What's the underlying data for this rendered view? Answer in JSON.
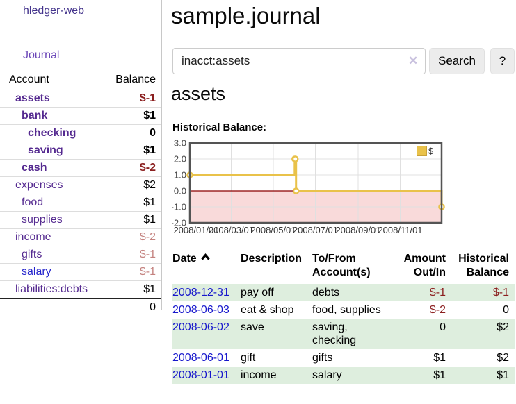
{
  "app": {
    "brand": "hledger-web"
  },
  "colors": {
    "brand_purple": "#44348c",
    "nav_purple": "#6b46b8",
    "account_link_purple": "#552a90",
    "link_blue": "#1717cc",
    "negative_strong": "#8b1f1f",
    "negative_faded": "#c4827f",
    "row_green": "#deeede",
    "chart_gold": "#e9c24a",
    "chart_negative_region": "#f9dada",
    "chart_zero_line": "#8b0000"
  },
  "sidebar": {
    "journal_link": "Journal",
    "accounts": {
      "headers": [
        "Account",
        "Balance"
      ],
      "rows": [
        {
          "name": "assets",
          "depth": 0,
          "bold": true,
          "balance": "$-1",
          "neg": "strong"
        },
        {
          "name": "bank",
          "depth": 1,
          "bold": true,
          "balance": "$1"
        },
        {
          "name": "checking",
          "depth": 2,
          "bold": true,
          "balance": "0"
        },
        {
          "name": "saving",
          "depth": 2,
          "bold": true,
          "balance": "$1"
        },
        {
          "name": "cash",
          "depth": 1,
          "bold": true,
          "balance": "$-2",
          "neg": "strong"
        },
        {
          "name": "expenses",
          "depth": 0,
          "bold": false,
          "balance": "$2"
        },
        {
          "name": "food",
          "depth": 1,
          "bold": false,
          "balance": "$1"
        },
        {
          "name": "supplies",
          "depth": 1,
          "bold": false,
          "balance": "$1"
        },
        {
          "name": "income",
          "depth": 0,
          "bold": false,
          "balance": "$-2",
          "neg": "faded"
        },
        {
          "name": "gifts",
          "depth": 1,
          "bold": false,
          "balance": "$-1",
          "neg": "faded"
        },
        {
          "name": "salary",
          "depth": 1,
          "bold": false,
          "balance": "$-1",
          "neg": "faded",
          "link": "blue"
        },
        {
          "name": "liabilities:debts",
          "depth": 0,
          "bold": false,
          "balance": "$1"
        }
      ],
      "total": "0"
    }
  },
  "main": {
    "title": "sample.journal",
    "search": {
      "value": "inacct:assets",
      "clear_glyph": "✕",
      "button_label": "Search",
      "help_label": "?"
    },
    "account_heading": "assets",
    "chart_label": "Historical Balance:"
  },
  "chart_data": {
    "type": "line",
    "style": "step",
    "title": "Historical Balance",
    "x_range": [
      "2008-01-01",
      "2008-12-31"
    ],
    "ylim": [
      -2,
      3
    ],
    "y_ticks": [
      "3.0",
      "2.0",
      "1.0",
      "0.0",
      "-1.0",
      "-2.0"
    ],
    "x_ticks": [
      "2008/01/01",
      "2008/03/01",
      "2008/05/01",
      "2008/07/01",
      "2008/09/01",
      "2008/11/01"
    ],
    "series": [
      {
        "name": "$",
        "color": "#e9c24a",
        "points": [
          {
            "date": "2008-01-01",
            "value": 1
          },
          {
            "date": "2008-06-01",
            "value": 2
          },
          {
            "date": "2008-06-02",
            "value": 2
          },
          {
            "date": "2008-06-03",
            "value": 0
          },
          {
            "date": "2008-12-31",
            "value": -1
          }
        ]
      }
    ],
    "legend": {
      "label": "$",
      "position": "top-right"
    },
    "grid": true,
    "zero_line_color": "#8b0000",
    "negative_region_color": "#f9dada"
  },
  "transactions": {
    "columns": [
      {
        "line1": "Date",
        "line2": "",
        "align": "left",
        "sorted": "asc",
        "sort_icon": "chevron-up"
      },
      {
        "line1": "Description",
        "line2": "",
        "align": "left"
      },
      {
        "line1": "To/From",
        "line2": "Account(s)",
        "align": "left"
      },
      {
        "line1": "Amount",
        "line2": "Out/In",
        "align": "right"
      },
      {
        "line1": "Historical",
        "line2": "Balance",
        "align": "right"
      }
    ],
    "rows": [
      {
        "date": "2008-12-31",
        "description": "pay off",
        "accounts": "debts",
        "amount": "$-1",
        "amount_neg": true,
        "balance": "$-1",
        "balance_neg": true,
        "shaded": true
      },
      {
        "date": "2008-06-03",
        "description": "eat & shop",
        "accounts": "food, supplies",
        "amount": "$-2",
        "amount_neg": true,
        "balance": "0",
        "balance_neg": false,
        "shaded": false
      },
      {
        "date": "2008-06-02",
        "description": "save",
        "accounts": "saving, checking",
        "amount": "0",
        "amount_neg": false,
        "balance": "$2",
        "balance_neg": false,
        "shaded": true
      },
      {
        "date": "2008-06-01",
        "description": "gift",
        "accounts": "gifts",
        "amount": "$1",
        "amount_neg": false,
        "balance": "$2",
        "balance_neg": false,
        "shaded": false
      },
      {
        "date": "2008-01-01",
        "description": "income",
        "accounts": "salary",
        "amount": "$1",
        "amount_neg": false,
        "balance": "$1",
        "balance_neg": false,
        "shaded": true
      }
    ]
  }
}
